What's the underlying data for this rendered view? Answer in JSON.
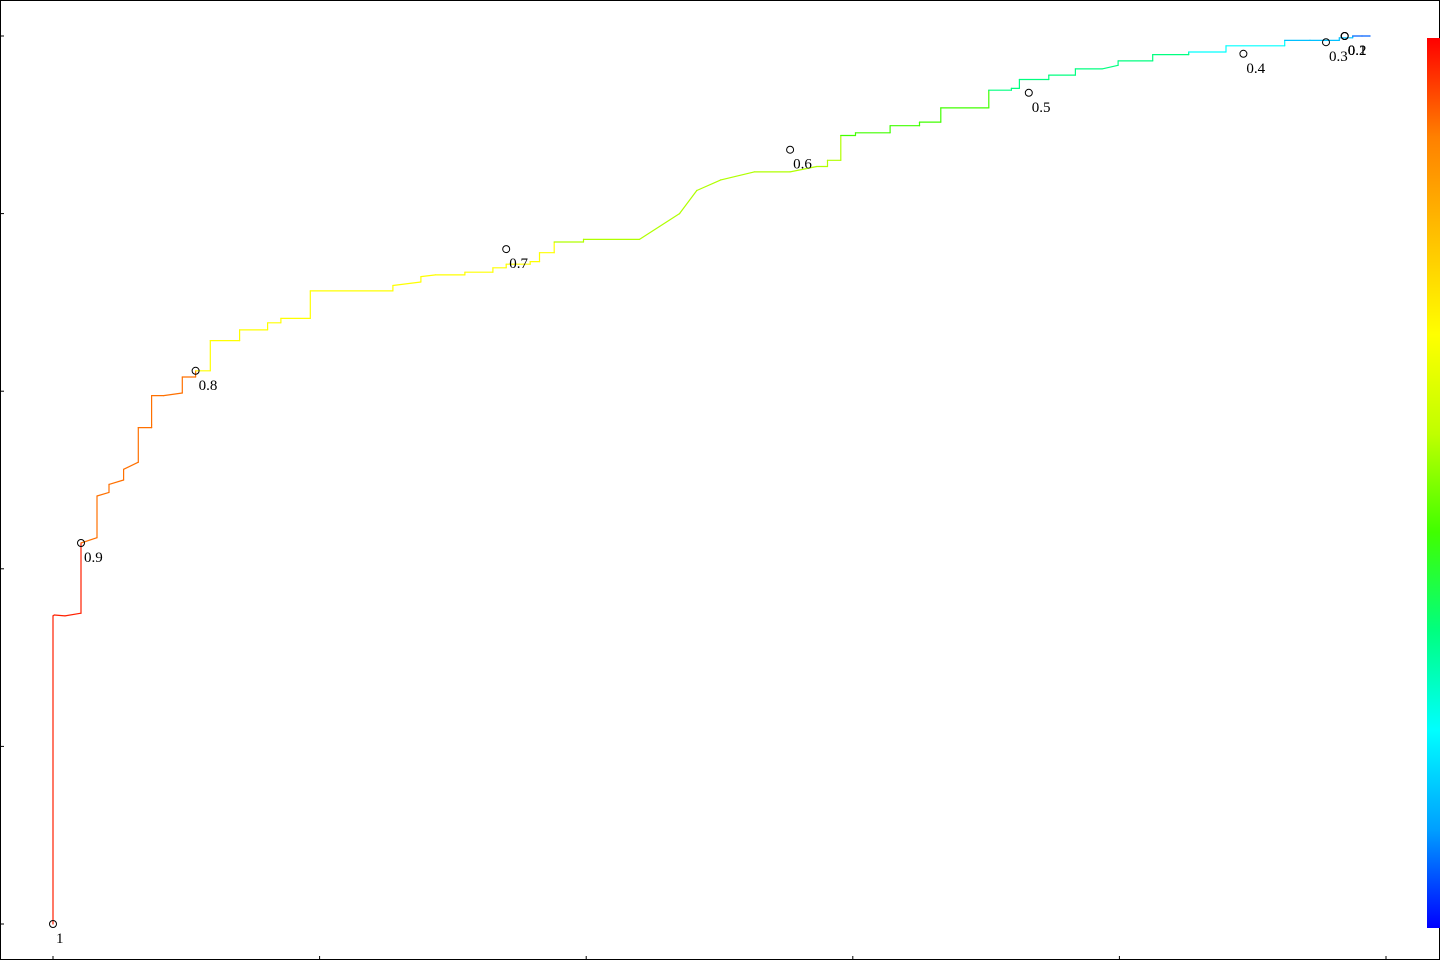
{
  "chart_data": {
    "type": "line",
    "title": "",
    "xlabel": "",
    "ylabel": "",
    "xlim": [
      0,
      1
    ],
    "ylim": [
      0,
      1
    ],
    "grid": false,
    "legend": "none",
    "colorbar": {
      "placement": "right",
      "range": [
        0,
        1
      ],
      "colors": [
        "#0000ff",
        "#00a0ff",
        "#00ffff",
        "#00ff80",
        "#40ff00",
        "#c0ff00",
        "#ffff00",
        "#ffc000",
        "#ff8000",
        "#ff0000"
      ]
    },
    "curve_color_scale": [
      {
        "cutoff": 1.0,
        "color": "#ff2000"
      },
      {
        "cutoff": 0.9,
        "color": "#ff7000"
      },
      {
        "cutoff": 0.8,
        "color": "#ffff00"
      },
      {
        "cutoff": 0.7,
        "color": "#b0ff00"
      },
      {
        "cutoff": 0.6,
        "color": "#40ff00"
      },
      {
        "cutoff": 0.5,
        "color": "#00ff80"
      },
      {
        "cutoff": 0.4,
        "color": "#00ffff"
      },
      {
        "cutoff": 0.3,
        "color": "#00c0ff"
      },
      {
        "cutoff": 0.2,
        "color": "#0080ff"
      },
      {
        "cutoff": 0.1,
        "color": "#0060ff"
      }
    ],
    "series": [
      {
        "x": [
          0.0,
          0.0,
          0.001,
          0.009,
          0.021,
          0.021,
          0.033,
          0.033,
          0.042,
          0.042,
          0.053,
          0.053,
          0.064,
          0.064,
          0.074,
          0.074,
          0.074,
          0.083,
          0.097,
          0.097,
          0.107,
          0.107,
          0.118,
          0.118,
          0.14,
          0.14,
          0.161,
          0.161,
          0.171,
          0.171,
          0.193,
          0.193,
          0.255,
          0.255,
          0.276,
          0.276,
          0.287,
          0.309,
          0.309,
          0.33,
          0.33,
          0.34,
          0.34,
          0.358,
          0.358,
          0.365,
          0.365,
          0.376,
          0.376,
          0.398,
          0.398,
          0.44,
          0.47,
          0.47,
          0.483,
          0.483,
          0.501,
          0.501,
          0.526,
          0.553,
          0.573,
          0.581,
          0.581,
          0.591,
          0.591,
          0.602,
          0.602,
          0.628,
          0.628,
          0.65,
          0.65,
          0.666,
          0.666,
          0.702,
          0.702,
          0.719,
          0.719,
          0.725,
          0.725,
          0.747,
          0.747,
          0.767,
          0.767,
          0.787,
          0.799,
          0.799,
          0.825,
          0.825,
          0.852,
          0.852,
          0.88,
          0.88,
          0.924,
          0.924,
          0.943,
          0.943,
          0.965,
          0.965,
          0.975,
          0.975,
          0.982,
          0.982,
          0.988,
          0.988
        ],
        "y": [
          0.0,
          0.347,
          0.348,
          0.347,
          0.35,
          0.429,
          0.435,
          0.482,
          0.486,
          0.495,
          0.5,
          0.512,
          0.52,
          0.559,
          0.559,
          0.562,
          0.595,
          0.595,
          0.598,
          0.616,
          0.616,
          0.623,
          0.623,
          0.657,
          0.657,
          0.669,
          0.669,
          0.677,
          0.677,
          0.682,
          0.682,
          0.713,
          0.713,
          0.719,
          0.723,
          0.729,
          0.731,
          0.731,
          0.734,
          0.734,
          0.739,
          0.739,
          0.743,
          0.743,
          0.746,
          0.746,
          0.756,
          0.756,
          0.768,
          0.768,
          0.771,
          0.771,
          0.8,
          0.8,
          0.826,
          0.826,
          0.838,
          0.838,
          0.847,
          0.847,
          0.853,
          0.853,
          0.86,
          0.86,
          0.888,
          0.888,
          0.891,
          0.891,
          0.899,
          0.899,
          0.903,
          0.903,
          0.919,
          0.919,
          0.939,
          0.939,
          0.941,
          0.941,
          0.951,
          0.951,
          0.956,
          0.956,
          0.963,
          0.963,
          0.967,
          0.972,
          0.972,
          0.979,
          0.979,
          0.982,
          0.982,
          0.989,
          0.989,
          0.995,
          0.995,
          0.995,
          0.995,
          0.998,
          0.998,
          1.0,
          1.0,
          1.0,
          1.0,
          1.0
        ]
      }
    ],
    "cutoffs": [
      {
        "label": "1",
        "x": 0.0,
        "y": 0.0
      },
      {
        "label": "0.9",
        "x": 0.021,
        "y": 0.429
      },
      {
        "label": "0.8",
        "x": 0.107,
        "y": 0.623
      },
      {
        "label": "0.7",
        "x": 0.34,
        "y": 0.76
      },
      {
        "label": "0.6",
        "x": 0.553,
        "y": 0.872
      },
      {
        "label": "0.5",
        "x": 0.732,
        "y": 0.936
      },
      {
        "label": "0.4",
        "x": 0.893,
        "y": 0.98
      },
      {
        "label": "0.3",
        "x": 0.955,
        "y": 0.993
      },
      {
        "label": "0.2",
        "x": 0.969,
        "y": 1.0
      },
      {
        "label": "0.1",
        "x": 0.969,
        "y": 1.0
      },
      {
        "label": "0",
        "x": 0.969,
        "y": 1.0
      }
    ]
  }
}
